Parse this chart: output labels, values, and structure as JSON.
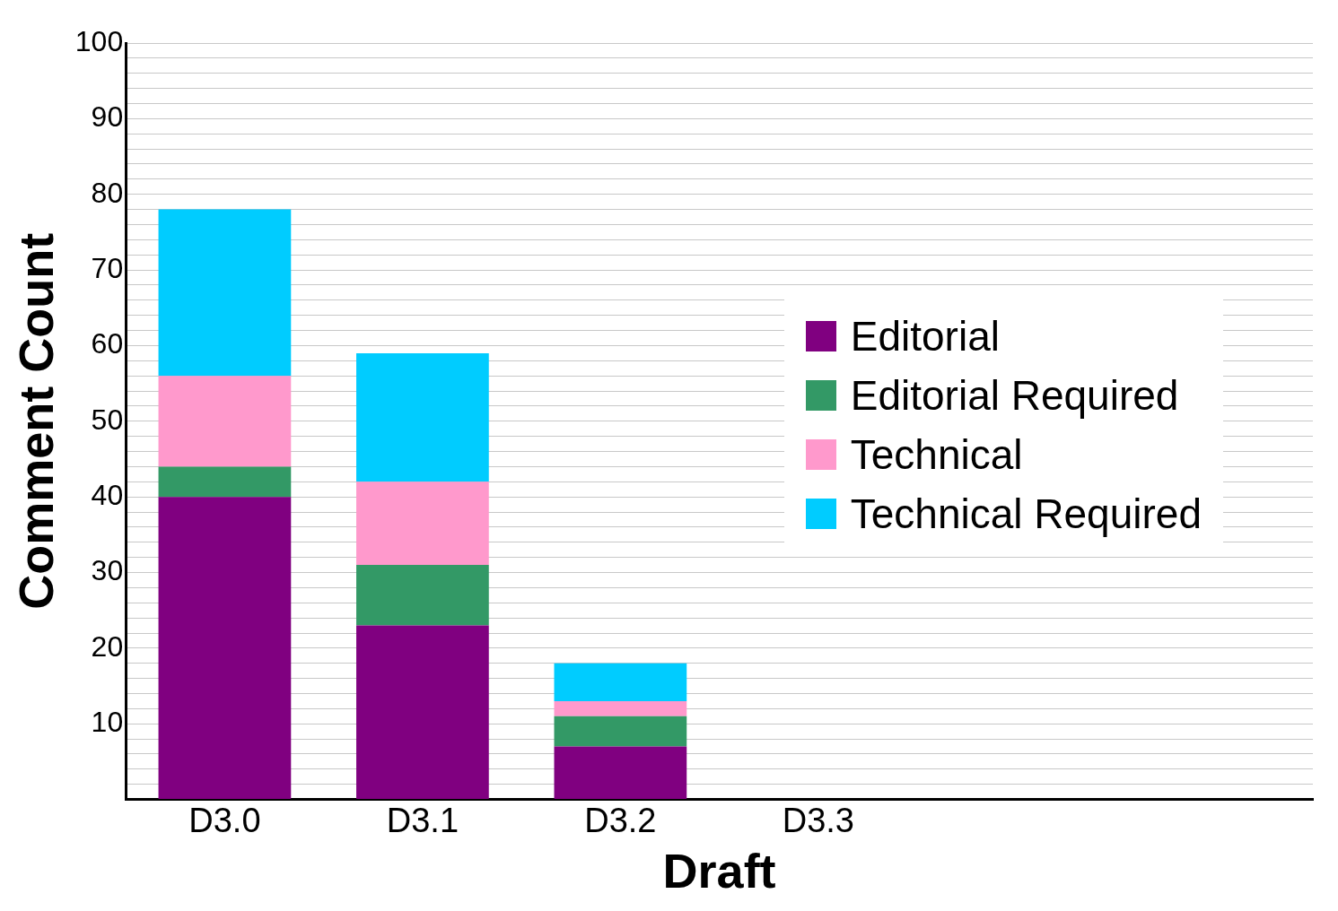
{
  "chart_data": {
    "type": "bar",
    "stacked": true,
    "xlabel": "Draft",
    "ylabel": "Comment Count",
    "categories": [
      "D3.0",
      "D3.1",
      "D3.2",
      "D3.3",
      null,
      null
    ],
    "series": [
      {
        "name": "Editorial",
        "color": "#800080",
        "values": [
          40,
          23,
          7,
          null,
          null,
          null
        ]
      },
      {
        "name": "Editorial Required",
        "color": "#339966",
        "values": [
          4,
          8,
          4,
          null,
          null,
          null
        ]
      },
      {
        "name": "Technical",
        "color": "#ff99cc",
        "values": [
          12,
          11,
          2,
          null,
          null,
          null
        ]
      },
      {
        "name": "Technical Required",
        "color": "#00ccff",
        "values": [
          22,
          17,
          5,
          null,
          null,
          null
        ]
      }
    ],
    "ylim": [
      0,
      100
    ],
    "yticks": [
      {
        "value": 0,
        "label": null
      },
      {
        "value": 2,
        "label": null
      },
      {
        "value": 4,
        "label": null
      },
      {
        "value": 6,
        "label": null
      },
      {
        "value": 8,
        "label": null
      },
      10,
      {
        "value": 12,
        "label": null
      },
      {
        "value": 14,
        "label": null
      },
      {
        "value": 16,
        "label": null
      },
      {
        "value": 18,
        "label": null
      },
      20,
      {
        "value": 22,
        "label": null
      },
      {
        "value": 24,
        "label": null
      },
      {
        "value": 26,
        "label": null
      },
      {
        "value": 28,
        "label": null
      },
      30,
      {
        "value": 32,
        "label": null
      },
      {
        "value": 34,
        "label": null
      },
      {
        "value": 36,
        "label": null
      },
      {
        "value": 38,
        "label": null
      },
      40,
      {
        "value": 42,
        "label": null
      },
      {
        "value": 44,
        "label": null
      },
      {
        "value": 46,
        "label": null
      },
      {
        "value": 48,
        "label": null
      },
      50,
      {
        "value": 52,
        "label": null
      },
      {
        "value": 54,
        "label": null
      },
      {
        "value": 56,
        "label": null
      },
      {
        "value": 58,
        "label": null
      },
      60,
      {
        "value": 62,
        "label": null
      },
      {
        "value": 64,
        "label": null
      },
      {
        "value": 66,
        "label": null
      },
      {
        "value": 68,
        "label": null
      },
      70,
      {
        "value": 72,
        "label": null
      },
      {
        "value": 74,
        "label": null
      },
      {
        "value": 76,
        "label": null
      },
      {
        "value": 78,
        "label": null
      },
      80,
      {
        "value": 82,
        "label": null
      },
      {
        "value": 84,
        "label": null
      },
      {
        "value": 86,
        "label": null
      },
      {
        "value": 88,
        "label": null
      },
      90,
      {
        "value": 92,
        "label": null
      },
      {
        "value": 94,
        "label": null
      },
      {
        "value": 96,
        "label": null
      },
      {
        "value": 98,
        "label": null
      },
      100
    ],
    "grid": "y",
    "legend": "right"
  }
}
